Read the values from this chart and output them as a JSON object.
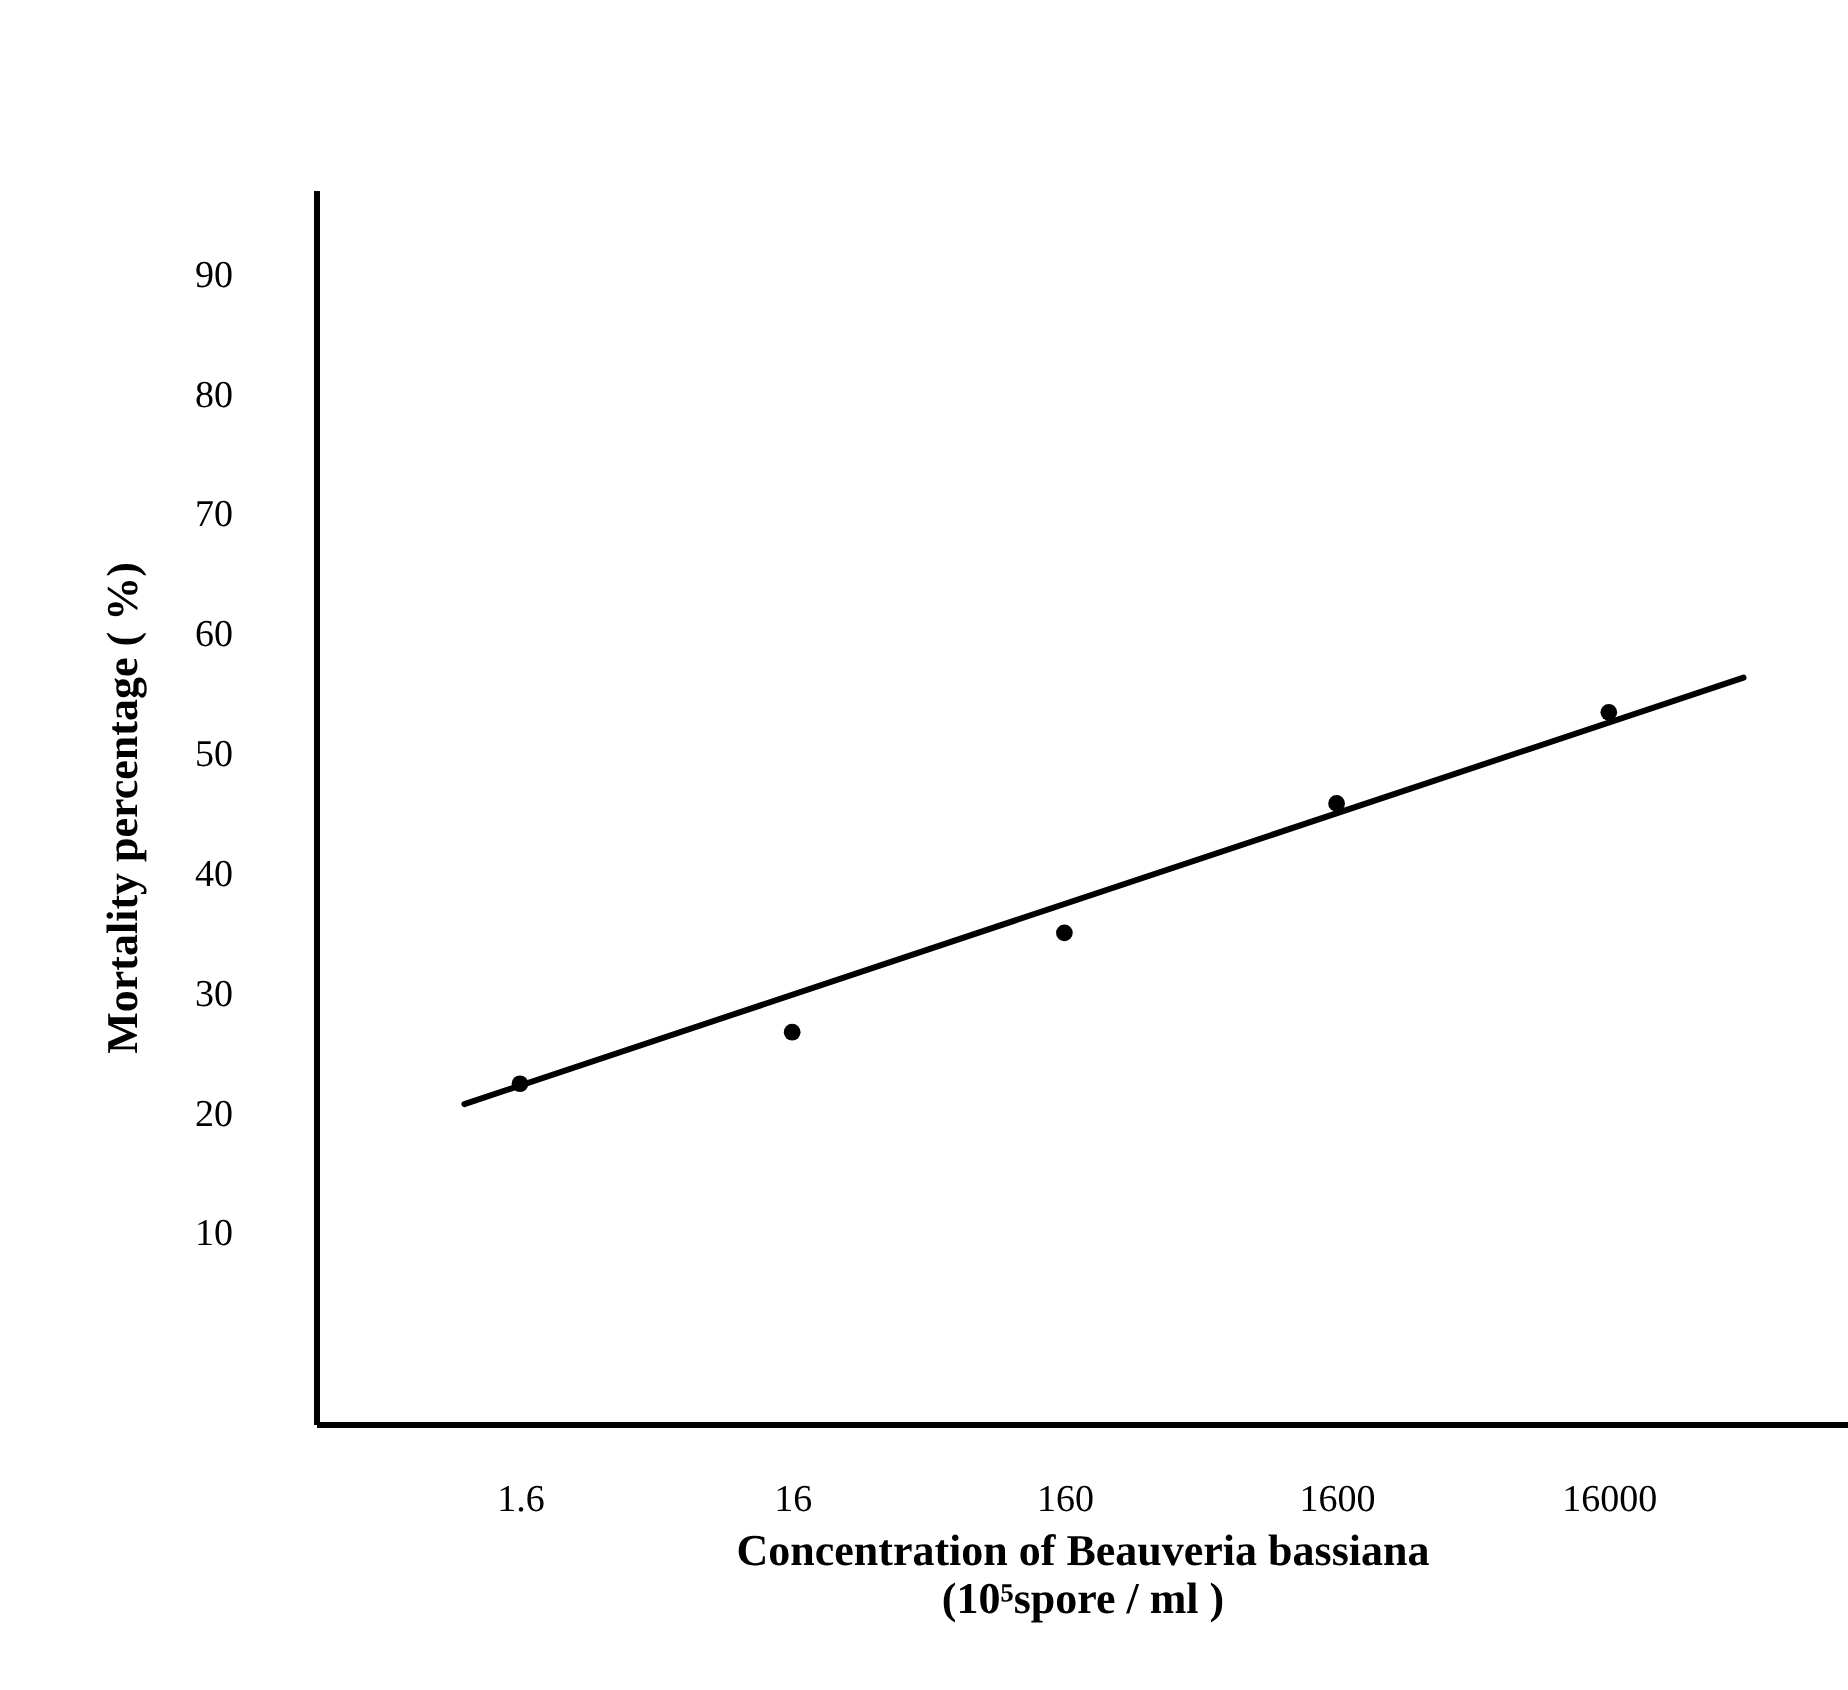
{
  "chart_data": {
    "type": "scatter",
    "xlabel": "Concentration of Beauveria bassiana\n(10⁵spore / ml )",
    "ylabel": "Mortality percentage ( %)",
    "log": "x",
    "xlim": [
      0.285,
      121000
    ],
    "xticks": [
      1.6,
      16,
      160,
      1600,
      16000
    ],
    "ylim": [
      -6,
      97
    ],
    "yticks": [
      10,
      20,
      30,
      40,
      50,
      60,
      70,
      80,
      90
    ],
    "grid": false,
    "series": [
      {
        "marker": "circle",
        "color": "#000000",
        "x": [
          1.6,
          16,
          160,
          1600,
          16000
        ],
        "values": [
          22.4,
          26.7,
          35.0,
          45.8,
          53.4
        ]
      },
      {
        "type": "line",
        "color": "#000000",
        "x": [
          1,
          50000
        ],
        "values": [
          20.7,
          56.3
        ],
        "line_style": "solid"
      }
    ]
  }
}
